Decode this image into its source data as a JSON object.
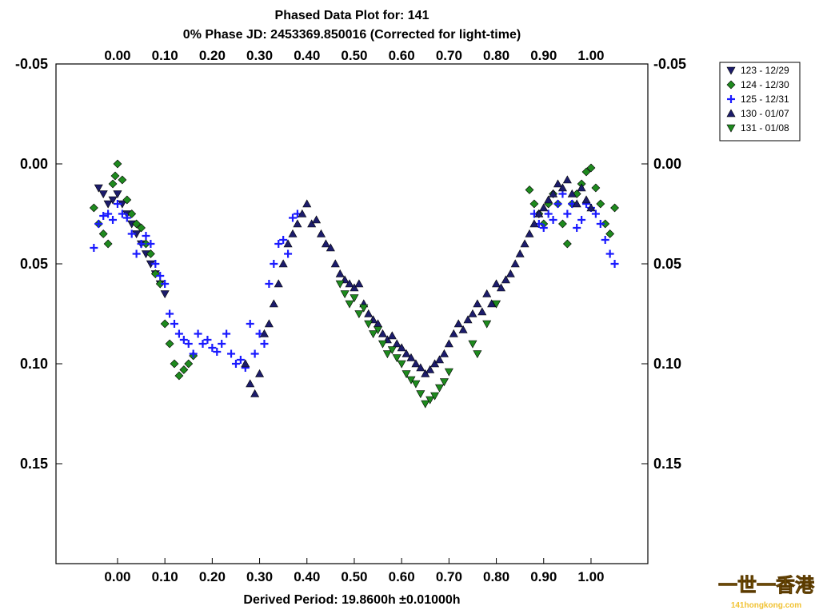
{
  "chart_data": {
    "type": "scatter",
    "title": "Phased Data Plot for: 141",
    "subtitle": "0% Phase JD:  2453369.850016   (Corrected for light-time)",
    "xlabel": "Derived Period: 19.8600h   ±0.01000h",
    "ylabel": "",
    "xlim": [
      -0.13,
      1.12
    ],
    "ylim": [
      0.2,
      -0.05
    ],
    "y_inverted": true,
    "x_ticks": [
      "0.00",
      "0.10",
      "0.20",
      "0.30",
      "0.40",
      "0.50",
      "0.60",
      "0.70",
      "0.80",
      "0.90",
      "1.00"
    ],
    "x_tick_values": [
      0,
      0.1,
      0.2,
      0.3,
      0.4,
      0.5,
      0.6,
      0.7,
      0.8,
      0.9,
      1.0
    ],
    "y_ticks": [
      "-0.05",
      "0.00",
      "0.05",
      "0.10",
      "0.15"
    ],
    "y_tick_values": [
      -0.05,
      0.0,
      0.05,
      0.1,
      0.15
    ],
    "grid": false,
    "legend_position": "top-right",
    "series": [
      {
        "name": "123 - 12/29",
        "marker": "triangle-down",
        "color": "#1c1c6b",
        "points": [
          [
            -0.04,
            0.012
          ],
          [
            -0.03,
            0.015
          ],
          [
            -0.02,
            0.02
          ],
          [
            -0.01,
            0.018
          ],
          [
            0.0,
            0.015
          ],
          [
            0.01,
            0.02
          ],
          [
            0.02,
            0.025
          ],
          [
            0.03,
            0.03
          ],
          [
            0.04,
            0.035
          ],
          [
            0.05,
            0.04
          ],
          [
            0.06,
            0.045
          ],
          [
            0.07,
            0.05
          ],
          [
            0.08,
            0.055
          ],
          [
            0.09,
            0.06
          ],
          [
            0.1,
            0.065
          ]
        ]
      },
      {
        "name": "124 - 12/30",
        "marker": "diamond",
        "color": "#1e8a1e",
        "points": [
          [
            -0.05,
            0.022
          ],
          [
            -0.04,
            0.03
          ],
          [
            -0.03,
            0.035
          ],
          [
            -0.02,
            0.04
          ],
          [
            -0.01,
            0.01
          ],
          [
            -0.005,
            0.006
          ],
          [
            0.0,
            0.0
          ],
          [
            0.01,
            0.008
          ],
          [
            0.02,
            0.018
          ],
          [
            0.03,
            0.025
          ],
          [
            0.04,
            0.03
          ],
          [
            0.05,
            0.032
          ],
          [
            0.06,
            0.04
          ],
          [
            0.07,
            0.045
          ],
          [
            0.08,
            0.055
          ],
          [
            0.09,
            0.06
          ],
          [
            0.1,
            0.08
          ],
          [
            0.11,
            0.09
          ],
          [
            0.12,
            0.1
          ],
          [
            0.13,
            0.106
          ],
          [
            0.14,
            0.103
          ],
          [
            0.15,
            0.1
          ],
          [
            0.16,
            0.096
          ],
          [
            0.87,
            0.013
          ],
          [
            0.88,
            0.02
          ],
          [
            0.89,
            0.025
          ],
          [
            0.9,
            0.03
          ],
          [
            0.91,
            0.02
          ],
          [
            0.92,
            0.015
          ],
          [
            0.93,
            0.02
          ],
          [
            0.94,
            0.03
          ],
          [
            0.95,
            0.04
          ],
          [
            0.96,
            0.02
          ],
          [
            0.97,
            0.015
          ],
          [
            0.98,
            0.01
          ],
          [
            0.99,
            0.004
          ],
          [
            1.0,
            0.002
          ],
          [
            1.01,
            0.012
          ],
          [
            1.02,
            0.02
          ],
          [
            1.03,
            0.03
          ],
          [
            1.04,
            0.035
          ],
          [
            1.05,
            0.022
          ]
        ]
      },
      {
        "name": "125 - 12/31",
        "marker": "plus",
        "color": "#1a1aff",
        "points": [
          [
            -0.05,
            0.042
          ],
          [
            -0.04,
            0.03
          ],
          [
            -0.03,
            0.026
          ],
          [
            -0.02,
            0.025
          ],
          [
            -0.01,
            0.028
          ],
          [
            0.0,
            0.02
          ],
          [
            0.01,
            0.025
          ],
          [
            0.02,
            0.027
          ],
          [
            0.03,
            0.035
          ],
          [
            0.04,
            0.045
          ],
          [
            0.05,
            0.04
          ],
          [
            0.06,
            0.036
          ],
          [
            0.07,
            0.04
          ],
          [
            0.08,
            0.05
          ],
          [
            0.09,
            0.056
          ],
          [
            0.1,
            0.06
          ],
          [
            0.11,
            0.075
          ],
          [
            0.12,
            0.08
          ],
          [
            0.13,
            0.085
          ],
          [
            0.14,
            0.088
          ],
          [
            0.15,
            0.09
          ],
          [
            0.16,
            0.095
          ],
          [
            0.17,
            0.085
          ],
          [
            0.18,
            0.09
          ],
          [
            0.19,
            0.088
          ],
          [
            0.2,
            0.092
          ],
          [
            0.21,
            0.094
          ],
          [
            0.22,
            0.09
          ],
          [
            0.23,
            0.085
          ],
          [
            0.24,
            0.095
          ],
          [
            0.25,
            0.1
          ],
          [
            0.26,
            0.098
          ],
          [
            0.27,
            0.102
          ],
          [
            0.28,
            0.08
          ],
          [
            0.29,
            0.095
          ],
          [
            0.3,
            0.085
          ],
          [
            0.31,
            0.09
          ],
          [
            0.32,
            0.06
          ],
          [
            0.33,
            0.05
          ],
          [
            0.34,
            0.04
          ],
          [
            0.35,
            0.038
          ],
          [
            0.36,
            0.045
          ],
          [
            0.37,
            0.027
          ],
          [
            0.38,
            0.025
          ],
          [
            0.88,
            0.025
          ],
          [
            0.89,
            0.03
          ],
          [
            0.9,
            0.032
          ],
          [
            0.91,
            0.025
          ],
          [
            0.92,
            0.028
          ],
          [
            0.93,
            0.02
          ],
          [
            0.94,
            0.015
          ],
          [
            0.95,
            0.025
          ],
          [
            0.96,
            0.02
          ],
          [
            0.97,
            0.032
          ],
          [
            0.98,
            0.028
          ],
          [
            0.99,
            0.02
          ],
          [
            1.0,
            0.022
          ],
          [
            1.01,
            0.025
          ],
          [
            1.02,
            0.03
          ],
          [
            1.03,
            0.038
          ],
          [
            1.04,
            0.045
          ],
          [
            1.05,
            0.05
          ]
        ]
      },
      {
        "name": "130 - 01/07",
        "marker": "triangle-up",
        "color": "#1c1c6b",
        "points": [
          [
            0.27,
            0.1
          ],
          [
            0.28,
            0.11
          ],
          [
            0.29,
            0.115
          ],
          [
            0.3,
            0.105
          ],
          [
            0.31,
            0.085
          ],
          [
            0.32,
            0.08
          ],
          [
            0.33,
            0.07
          ],
          [
            0.34,
            0.06
          ],
          [
            0.35,
            0.05
          ],
          [
            0.36,
            0.04
          ],
          [
            0.37,
            0.035
          ],
          [
            0.38,
            0.03
          ],
          [
            0.39,
            0.025
          ],
          [
            0.4,
            0.02
          ],
          [
            0.41,
            0.03
          ],
          [
            0.42,
            0.028
          ],
          [
            0.43,
            0.035
          ],
          [
            0.44,
            0.04
          ],
          [
            0.45,
            0.042
          ],
          [
            0.46,
            0.05
          ],
          [
            0.47,
            0.055
          ],
          [
            0.48,
            0.058
          ],
          [
            0.49,
            0.06
          ],
          [
            0.5,
            0.062
          ],
          [
            0.51,
            0.06
          ],
          [
            0.52,
            0.07
          ],
          [
            0.53,
            0.075
          ],
          [
            0.54,
            0.078
          ],
          [
            0.55,
            0.08
          ],
          [
            0.56,
            0.085
          ],
          [
            0.57,
            0.088
          ],
          [
            0.58,
            0.086
          ],
          [
            0.59,
            0.09
          ],
          [
            0.6,
            0.092
          ],
          [
            0.61,
            0.095
          ],
          [
            0.62,
            0.097
          ],
          [
            0.63,
            0.1
          ],
          [
            0.64,
            0.102
          ],
          [
            0.65,
            0.105
          ],
          [
            0.66,
            0.103
          ],
          [
            0.67,
            0.1
          ],
          [
            0.68,
            0.098
          ],
          [
            0.69,
            0.095
          ],
          [
            0.7,
            0.09
          ],
          [
            0.71,
            0.085
          ],
          [
            0.72,
            0.08
          ],
          [
            0.73,
            0.083
          ],
          [
            0.74,
            0.078
          ],
          [
            0.75,
            0.075
          ],
          [
            0.76,
            0.07
          ],
          [
            0.77,
            0.074
          ],
          [
            0.78,
            0.065
          ],
          [
            0.79,
            0.07
          ],
          [
            0.8,
            0.06
          ],
          [
            0.81,
            0.062
          ],
          [
            0.82,
            0.058
          ],
          [
            0.83,
            0.055
          ],
          [
            0.84,
            0.05
          ],
          [
            0.85,
            0.045
          ],
          [
            0.86,
            0.04
          ],
          [
            0.87,
            0.035
          ],
          [
            0.88,
            0.03
          ],
          [
            0.89,
            0.025
          ],
          [
            0.9,
            0.022
          ],
          [
            0.91,
            0.018
          ],
          [
            0.92,
            0.015
          ],
          [
            0.93,
            0.01
          ],
          [
            0.94,
            0.012
          ],
          [
            0.95,
            0.008
          ],
          [
            0.96,
            0.015
          ],
          [
            0.97,
            0.02
          ],
          [
            0.98,
            0.012
          ],
          [
            0.99,
            0.018
          ],
          [
            1.0,
            0.022
          ]
        ]
      },
      {
        "name": "131 - 01/08",
        "marker": "triangle-down",
        "color": "#1e8a1e",
        "points": [
          [
            0.47,
            0.06
          ],
          [
            0.48,
            0.065
          ],
          [
            0.49,
            0.07
          ],
          [
            0.5,
            0.067
          ],
          [
            0.51,
            0.075
          ],
          [
            0.52,
            0.072
          ],
          [
            0.53,
            0.08
          ],
          [
            0.54,
            0.085
          ],
          [
            0.55,
            0.083
          ],
          [
            0.56,
            0.09
          ],
          [
            0.57,
            0.095
          ],
          [
            0.58,
            0.093
          ],
          [
            0.59,
            0.097
          ],
          [
            0.6,
            0.1
          ],
          [
            0.61,
            0.105
          ],
          [
            0.62,
            0.108
          ],
          [
            0.63,
            0.11
          ],
          [
            0.64,
            0.115
          ],
          [
            0.65,
            0.12
          ],
          [
            0.66,
            0.118
          ],
          [
            0.67,
            0.116
          ],
          [
            0.68,
            0.112
          ],
          [
            0.69,
            0.109
          ],
          [
            0.7,
            0.104
          ],
          [
            0.75,
            0.09
          ],
          [
            0.76,
            0.095
          ],
          [
            0.78,
            0.08
          ],
          [
            0.8,
            0.07
          ]
        ]
      }
    ]
  },
  "watermark": {
    "line1": "一世一香港",
    "line2": "141hongkong.com"
  }
}
